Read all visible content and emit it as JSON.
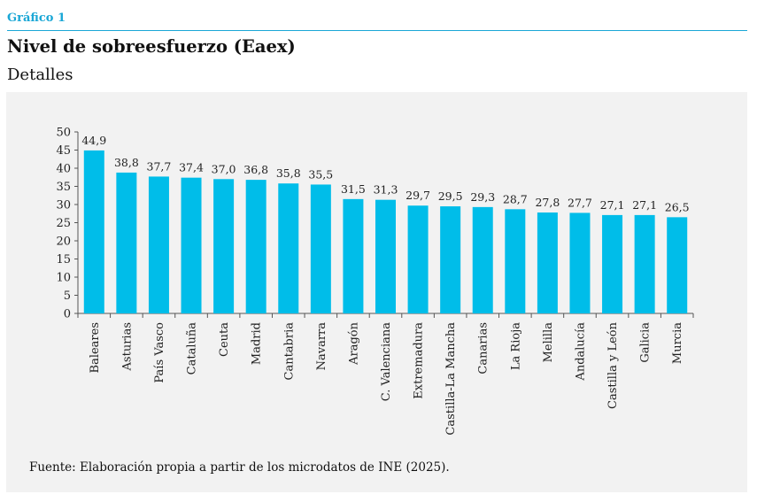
{
  "header": {
    "kicker": "Gráfico 1",
    "title": "Nivel de sobreesfuerzo (Eaex)",
    "subtitle": "Detalles"
  },
  "footer": {
    "source": "Fuente: Elaboración propia a partir de los microdatos de INE (2025)."
  },
  "colors": {
    "bar": "#00bde9",
    "accent": "#1aa7d6",
    "background": "#f2f2f2"
  },
  "chart_data": {
    "type": "bar",
    "title": "Nivel de sobreesfuerzo (Eaex)",
    "subtitle": "Detalles",
    "xlabel": "",
    "ylabel": "",
    "ylim": [
      0,
      50
    ],
    "yticks": [
      0,
      5,
      10,
      15,
      20,
      25,
      30,
      35,
      40,
      45,
      50
    ],
    "grid": false,
    "legend": "none",
    "categories": [
      "Baleares",
      "Asturias",
      "País Vasco",
      "Cataluña",
      "Ceuta",
      "Madrid",
      "Cantabria",
      "Navarra",
      "Aragón",
      "C. Valenciana",
      "Extremadura",
      "Castilla-La Mancha",
      "Canarias",
      "La Rioja",
      "Melilla",
      "Andalucía",
      "Castilla y León",
      "Galicia",
      "Murcia"
    ],
    "values": [
      44.9,
      38.8,
      37.7,
      37.4,
      37.0,
      36.8,
      35.8,
      35.5,
      31.5,
      31.3,
      29.7,
      29.5,
      29.3,
      28.7,
      27.8,
      27.7,
      27.1,
      27.1,
      26.5
    ],
    "value_labels": [
      "44,9",
      "38,8",
      "37,7",
      "37,4",
      "37,0",
      "36,8",
      "35,8",
      "35,5",
      "31,5",
      "31,3",
      "29,7",
      "29,5",
      "29,3",
      "28,7",
      "27,8",
      "27,7",
      "27,1",
      "27,1",
      "26,5"
    ]
  }
}
